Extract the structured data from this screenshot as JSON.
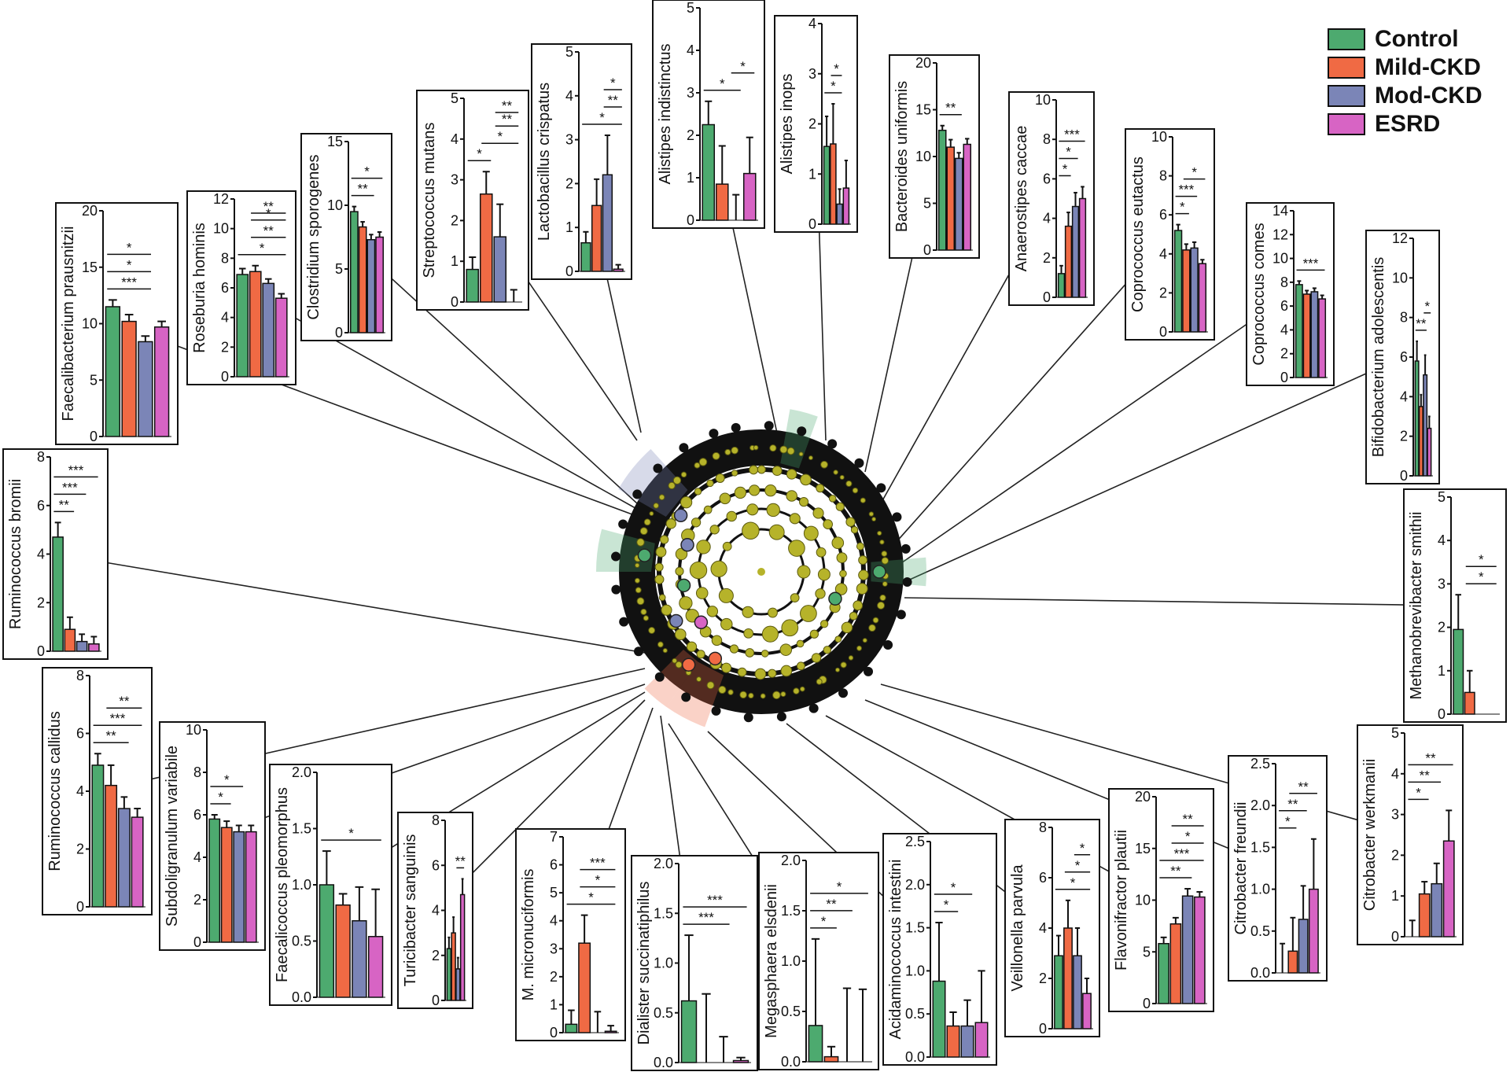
{
  "colors": {
    "Control": "#4daa6f",
    "Mild-CKD": "#f06a44",
    "Mod-CKD": "#7b85b7",
    "ESRD": "#d764c4"
  },
  "legend": {
    "items": [
      {
        "label": "Control",
        "color": "#4daa6f"
      },
      {
        "label": "Mild-CKD",
        "color": "#f06a44"
      },
      {
        "label": "Mod-CKD",
        "color": "#7b85b7"
      },
      {
        "label": "ESRD",
        "color": "#d764c4"
      }
    ]
  },
  "chart_data": [
    {
      "type": "bar",
      "title": "Faecalibacterium prausnitzii",
      "ylim": [
        0,
        20
      ],
      "yticks": [
        0,
        5,
        10,
        15,
        20
      ],
      "categories": [
        "Control",
        "Mild-CKD",
        "Mod-CKD",
        "ESRD"
      ],
      "values": [
        11.5,
        10.2,
        8.4,
        9.7
      ],
      "errors": [
        0.6,
        0.6,
        0.5,
        0.5
      ],
      "significance": [
        {
          "from": 0,
          "to": 2,
          "label": "***"
        },
        {
          "from": 0,
          "to": 2,
          "label": "*"
        },
        {
          "from": 0,
          "to": 2,
          "label": "*"
        }
      ]
    },
    {
      "type": "bar",
      "title": "Roseburia hominis",
      "ylim": [
        0,
        12
      ],
      "yticks": [
        0,
        2,
        4,
        6,
        8,
        10,
        12
      ],
      "categories": [
        "Control",
        "Mild-CKD",
        "Mod-CKD",
        "ESRD"
      ],
      "values": [
        6.9,
        7.1,
        6.3,
        5.3
      ],
      "errors": [
        0.4,
        0.4,
        0.3,
        0.3
      ],
      "significance": [
        {
          "from": 0,
          "to": 3,
          "label": "*"
        },
        {
          "from": 1,
          "to": 3,
          "label": "**"
        },
        {
          "from": 1,
          "to": 3,
          "label": "*"
        },
        {
          "from": 1,
          "to": 3,
          "label": "**"
        }
      ]
    },
    {
      "type": "bar",
      "title": "Clostridium sporogenes",
      "ylim": [
        0,
        15
      ],
      "yticks": [
        0,
        5,
        10,
        15
      ],
      "categories": [
        "Control",
        "Mild-CKD",
        "Mod-CKD",
        "ESRD"
      ],
      "values": [
        9.5,
        8.3,
        7.3,
        7.5
      ],
      "errors": [
        0.4,
        0.4,
        0.4,
        0.4
      ],
      "significance": [
        {
          "from": 0,
          "to": 2,
          "label": "**"
        },
        {
          "from": 0,
          "to": 3,
          "label": "*"
        }
      ]
    },
    {
      "type": "bar",
      "title": "Streptococcus mutans",
      "ylim": [
        0,
        5
      ],
      "yticks": [
        0,
        1,
        2,
        3,
        4,
        5
      ],
      "categories": [
        "Control",
        "Mild-CKD",
        "Mod-CKD",
        "ESRD"
      ],
      "values": [
        0.8,
        2.65,
        1.6,
        0.0
      ],
      "errors": [
        0.3,
        0.55,
        0.8,
        0.3
      ],
      "significance": [
        {
          "from": 0,
          "to": 1,
          "label": "*"
        },
        {
          "from": 1,
          "to": 3,
          "label": "*"
        },
        {
          "from": 2,
          "to": 3,
          "label": "**"
        },
        {
          "from": 2,
          "to": 3,
          "label": "**"
        }
      ]
    },
    {
      "type": "bar",
      "title": "Lactobacillus crispatus",
      "ylim": [
        0,
        5
      ],
      "yticks": [
        0,
        1,
        2,
        3,
        4,
        5
      ],
      "categories": [
        "Control",
        "Mild-CKD",
        "Mod-CKD",
        "ESRD"
      ],
      "values": [
        0.65,
        1.5,
        2.2,
        0.05
      ],
      "errors": [
        0.25,
        0.6,
        0.9,
        0.1
      ],
      "significance": [
        {
          "from": 0,
          "to": 3,
          "label": "*"
        },
        {
          "from": 2,
          "to": 3,
          "label": "**"
        },
        {
          "from": 2,
          "to": 3,
          "label": "*"
        }
      ]
    },
    {
      "type": "bar",
      "title": "Alistipes indistinctus",
      "ylim": [
        0,
        5
      ],
      "yticks": [
        0,
        1,
        2,
        3,
        4,
        5
      ],
      "categories": [
        "Control",
        "Mild-CKD",
        "Mod-CKD",
        "ESRD"
      ],
      "values": [
        2.25,
        0.85,
        0.0,
        1.1
      ],
      "errors": [
        0.55,
        0.9,
        0.6,
        0.85
      ],
      "significance": [
        {
          "from": 0,
          "to": 2,
          "label": "*"
        },
        {
          "from": 2,
          "to": 3,
          "label": "*"
        }
      ]
    },
    {
      "type": "bar",
      "title": "Alistipes inops",
      "ylim": [
        0,
        4
      ],
      "yticks": [
        0,
        1,
        2,
        3,
        4
      ],
      "categories": [
        "Control",
        "Mild-CKD",
        "Mod-CKD",
        "ESRD"
      ],
      "values": [
        1.55,
        1.6,
        0.4,
        0.72
      ],
      "errors": [
        0.6,
        0.8,
        0.3,
        0.55
      ],
      "significance": [
        {
          "from": 0,
          "to": 2,
          "label": "*"
        },
        {
          "from": 1,
          "to": 2,
          "label": "*"
        }
      ]
    },
    {
      "type": "bar",
      "title": "Bacteroides uniformis",
      "ylim": [
        0,
        20
      ],
      "yticks": [
        0,
        5,
        10,
        15,
        20
      ],
      "categories": [
        "Control",
        "Mild-CKD",
        "Mod-CKD",
        "ESRD"
      ],
      "values": [
        12.8,
        11.0,
        9.8,
        11.3
      ],
      "errors": [
        0.5,
        0.8,
        0.6,
        0.6
      ],
      "significance": [
        {
          "from": 0,
          "to": 2,
          "label": "**"
        }
      ]
    },
    {
      "type": "bar",
      "title": "Anaerostipes caccae",
      "ylim": [
        0,
        10
      ],
      "yticks": [
        0,
        2,
        4,
        6,
        8,
        10
      ],
      "categories": [
        "Control",
        "Mild-CKD",
        "Mod-CKD",
        "ESRD"
      ],
      "values": [
        1.2,
        3.6,
        4.6,
        5.0
      ],
      "errors": [
        0.4,
        0.7,
        0.7,
        0.6
      ],
      "significance": [
        {
          "from": 0,
          "to": 1,
          "label": "*"
        },
        {
          "from": 0,
          "to": 2,
          "label": "*"
        },
        {
          "from": 0,
          "to": 3,
          "label": "***"
        }
      ]
    },
    {
      "type": "bar",
      "title": "Coprococcus eutactus",
      "ylim": [
        0,
        10
      ],
      "yticks": [
        0,
        2,
        4,
        6,
        8,
        10
      ],
      "categories": [
        "Control",
        "Mild-CKD",
        "Mod-CKD",
        "ESRD"
      ],
      "values": [
        5.2,
        4.2,
        4.3,
        3.5
      ],
      "errors": [
        0.3,
        0.3,
        0.3,
        0.2
      ],
      "significance": [
        {
          "from": 0,
          "to": 1,
          "label": "*"
        },
        {
          "from": 0,
          "to": 2,
          "label": "***"
        },
        {
          "from": 1,
          "to": 3,
          "label": "*"
        }
      ]
    },
    {
      "type": "bar",
      "title": "Coprococcus comes",
      "ylim": [
        0,
        14
      ],
      "yticks": [
        0,
        2,
        4,
        6,
        8,
        10,
        12,
        14
      ],
      "categories": [
        "Control",
        "Mild-CKD",
        "Mod-CKD",
        "ESRD"
      ],
      "values": [
        7.8,
        7.0,
        7.2,
        6.6
      ],
      "errors": [
        0.3,
        0.3,
        0.3,
        0.3
      ],
      "significance": [
        {
          "from": 0,
          "to": 3,
          "label": "***"
        }
      ]
    },
    {
      "type": "bar",
      "title": "Bifidobacterium adolescentis",
      "ylim": [
        0,
        12
      ],
      "yticks": [
        0,
        2,
        4,
        6,
        8,
        10,
        12
      ],
      "categories": [
        "Control",
        "Mild-CKD",
        "Mod-CKD",
        "ESRD"
      ],
      "values": [
        5.8,
        3.5,
        5.1,
        2.4
      ],
      "errors": [
        1.0,
        0.6,
        1.0,
        0.6
      ],
      "significance": [
        {
          "from": 0,
          "to": 2,
          "label": "**"
        },
        {
          "from": 2,
          "to": 3,
          "label": "*"
        }
      ]
    },
    {
      "type": "bar",
      "title": "Ruminococcus bromii",
      "ylim": [
        0,
        8
      ],
      "yticks": [
        0,
        2,
        4,
        6,
        8
      ],
      "categories": [
        "Control",
        "Mild-CKD",
        "Mod-CKD",
        "ESRD"
      ],
      "values": [
        4.7,
        0.9,
        0.4,
        0.3
      ],
      "errors": [
        0.6,
        0.5,
        0.3,
        0.3
      ],
      "significance": [
        {
          "from": 0,
          "to": 1,
          "label": "**"
        },
        {
          "from": 0,
          "to": 2,
          "label": "***"
        },
        {
          "from": 0,
          "to": 3,
          "label": "***"
        }
      ]
    },
    {
      "type": "bar",
      "title": "Methanobrevibacter smithii",
      "ylim": [
        0,
        5
      ],
      "yticks": [
        0,
        1,
        2,
        3,
        4,
        5
      ],
      "categories": [
        "Control",
        "Mild-CKD",
        "Mod-CKD",
        "ESRD"
      ],
      "values": [
        1.95,
        0.5,
        0.0,
        0.0
      ],
      "errors": [
        0.8,
        0.5,
        0.0,
        0.0
      ],
      "significance": [
        {
          "from": 1,
          "to": 3,
          "label": "*"
        },
        {
          "from": 1,
          "to": 3,
          "label": "*"
        }
      ]
    },
    {
      "type": "bar",
      "title": "Ruminococcus callidus",
      "ylim": [
        0,
        8
      ],
      "yticks": [
        0,
        2,
        4,
        6,
        8
      ],
      "categories": [
        "Control",
        "Mild-CKD",
        "Mod-CKD",
        "ESRD"
      ],
      "values": [
        4.9,
        4.2,
        3.4,
        3.1
      ],
      "errors": [
        0.4,
        0.7,
        0.4,
        0.3
      ],
      "significance": [
        {
          "from": 0,
          "to": 2,
          "label": "**"
        },
        {
          "from": 0,
          "to": 3,
          "label": "***"
        },
        {
          "from": 1,
          "to": 3,
          "label": "**"
        }
      ]
    },
    {
      "type": "bar",
      "title": "Subdoligranulum variabile",
      "ylim": [
        0,
        10
      ],
      "yticks": [
        0,
        2,
        4,
        6,
        8,
        10
      ],
      "categories": [
        "Control",
        "Mild-CKD",
        "Mod-CKD",
        "ESRD"
      ],
      "values": [
        5.8,
        5.4,
        5.2,
        5.2
      ],
      "errors": [
        0.2,
        0.3,
        0.3,
        0.3
      ],
      "significance": [
        {
          "from": 0,
          "to": 1,
          "label": "*"
        },
        {
          "from": 0,
          "to": 2,
          "label": "*"
        }
      ]
    },
    {
      "type": "bar",
      "title": "Faecalicoccus pleomorphus",
      "ylim": [
        0,
        2.0
      ],
      "yticks": [
        "0.0",
        "0.5",
        "1.0",
        "1.5",
        "2.0"
      ],
      "categories": [
        "Control",
        "Mild-CKD",
        "Mod-CKD",
        "ESRD"
      ],
      "values": [
        1.0,
        0.82,
        0.68,
        0.54
      ],
      "errors": [
        0.3,
        0.1,
        0.3,
        0.42
      ],
      "significance": [
        {
          "from": 0,
          "to": 3,
          "label": "*"
        }
      ]
    },
    {
      "type": "bar",
      "title": "Turicibacter sanguinis",
      "ylim": [
        0,
        8
      ],
      "yticks": [
        0,
        2,
        4,
        6,
        8
      ],
      "categories": [
        "Control",
        "Mild-CKD",
        "Mod-CKD",
        "ESRD"
      ],
      "values": [
        2.3,
        3.0,
        1.4,
        4.7
      ],
      "errors": [
        0.5,
        0.7,
        0.5,
        0.7
      ],
      "significance": [
        {
          "from": 2,
          "to": 3,
          "label": "**"
        }
      ]
    },
    {
      "type": "bar",
      "title": "M. micronuciformis",
      "ylim": [
        0,
        7
      ],
      "yticks": [
        0,
        1,
        2,
        3,
        4,
        5,
        6,
        7
      ],
      "categories": [
        "Control",
        "Mild-CKD",
        "Mod-CKD",
        "ESRD"
      ],
      "values": [
        0.3,
        3.2,
        0.0,
        0.05
      ],
      "errors": [
        0.5,
        1.0,
        0.75,
        0.2
      ],
      "significance": [
        {
          "from": 0,
          "to": 3,
          "label": "*"
        },
        {
          "from": 1,
          "to": 3,
          "label": "*"
        },
        {
          "from": 1,
          "to": 3,
          "label": "***"
        }
      ]
    },
    {
      "type": "bar",
      "title": "Dialister succinatiphilus",
      "ylim": [
        0,
        2.0
      ],
      "yticks": [
        "0.0",
        "0.5",
        "1.0",
        "1.5",
        "2.0"
      ],
      "categories": [
        "Control",
        "Mild-CKD",
        "Mod-CKD",
        "ESRD"
      ],
      "values": [
        0.62,
        0.0,
        0.0,
        0.02
      ],
      "errors": [
        0.66,
        0.69,
        0.26,
        0.03
      ],
      "significance": [
        {
          "from": 0,
          "to": 2,
          "label": "***"
        },
        {
          "from": 0,
          "to": 3,
          "label": "***"
        }
      ]
    },
    {
      "type": "bar",
      "title": "Megasphaera elsdenii",
      "ylim": [
        0,
        2.0
      ],
      "yticks": [
        "0.0",
        "0.5",
        "1.0",
        "1.5",
        "2.0"
      ],
      "categories": [
        "Control",
        "Mild-CKD",
        "Mod-CKD",
        "ESRD"
      ],
      "values": [
        0.36,
        0.05,
        0.0,
        0.0
      ],
      "errors": [
        0.86,
        0.1,
        0.73,
        0.72
      ],
      "significance": [
        {
          "from": 0,
          "to": 1,
          "label": "*"
        },
        {
          "from": 0,
          "to": 2,
          "label": "**"
        },
        {
          "from": 0,
          "to": 3,
          "label": "*"
        }
      ]
    },
    {
      "type": "bar",
      "title": "Acidaminococcus intestini",
      "ylim": [
        0,
        2.5
      ],
      "yticks": [
        "0.0",
        "0.5",
        "1.0",
        "1.5",
        "2.0",
        "2.5"
      ],
      "categories": [
        "Control",
        "Mild-CKD",
        "Mod-CKD",
        "ESRD"
      ],
      "values": [
        0.88,
        0.36,
        0.36,
        0.4
      ],
      "errors": [
        0.68,
        0.16,
        0.3,
        0.6
      ],
      "significance": [
        {
          "from": 0,
          "to": 1,
          "label": "*"
        },
        {
          "from": 0,
          "to": 2,
          "label": "*"
        }
      ]
    },
    {
      "type": "bar",
      "title": "Veillonella parvula",
      "ylim": [
        0,
        8
      ],
      "yticks": [
        0,
        2,
        4,
        6,
        8
      ],
      "categories": [
        "Control",
        "Mild-CKD",
        "Mod-CKD",
        "ESRD"
      ],
      "values": [
        2.9,
        4.0,
        2.9,
        1.4
      ],
      "errors": [
        0.8,
        1.1,
        1.1,
        0.6
      ],
      "significance": [
        {
          "from": 0,
          "to": 3,
          "label": "*"
        },
        {
          "from": 1,
          "to": 3,
          "label": "*"
        },
        {
          "from": 2,
          "to": 3,
          "label": "*"
        }
      ]
    },
    {
      "type": "bar",
      "title": "Flavonifractor plautii",
      "ylim": [
        0,
        20
      ],
      "yticks": [
        0,
        5,
        10,
        15,
        20
      ],
      "categories": [
        "Control",
        "Mild-CKD",
        "Mod-CKD",
        "ESRD"
      ],
      "values": [
        5.8,
        7.7,
        10.4,
        10.3
      ],
      "errors": [
        0.6,
        0.6,
        0.7,
        0.5
      ],
      "significance": [
        {
          "from": 0,
          "to": 2,
          "label": "**"
        },
        {
          "from": 0,
          "to": 3,
          "label": "***"
        },
        {
          "from": 1,
          "to": 3,
          "label": "*"
        },
        {
          "from": 1,
          "to": 3,
          "label": "**"
        }
      ]
    },
    {
      "type": "bar",
      "title": "Citrobacter freundii",
      "ylim": [
        0,
        2.5
      ],
      "yticks": [
        "0.0",
        "0.5",
        "1.0",
        "1.5",
        "2.0",
        "2.5"
      ],
      "categories": [
        "Control",
        "Mild-CKD",
        "Mod-CKD",
        "ESRD"
      ],
      "values": [
        0.0,
        0.26,
        0.64,
        1.0
      ],
      "errors": [
        0.35,
        0.4,
        0.4,
        0.6
      ],
      "significance": [
        {
          "from": 0,
          "to": 1,
          "label": "*"
        },
        {
          "from": 0,
          "to": 2,
          "label": "**"
        },
        {
          "from": 1,
          "to": 3,
          "label": "**"
        }
      ]
    },
    {
      "type": "bar",
      "title": "Citrobacter werkmanii",
      "ylim": [
        0,
        5
      ],
      "yticks": [
        0,
        1,
        2,
        3,
        4,
        5
      ],
      "categories": [
        "Control",
        "Mild-CKD",
        "Mod-CKD",
        "ESRD"
      ],
      "values": [
        0.0,
        1.05,
        1.3,
        2.35
      ],
      "errors": [
        0.4,
        0.3,
        0.5,
        0.75
      ],
      "significance": [
        {
          "from": 0,
          "to": 1,
          "label": "*"
        },
        {
          "from": 0,
          "to": 2,
          "label": "**"
        },
        {
          "from": 0,
          "to": 3,
          "label": "**"
        }
      ]
    }
  ]
}
